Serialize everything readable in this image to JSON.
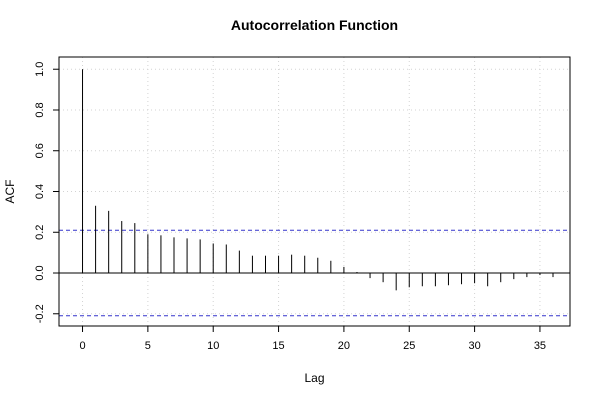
{
  "chart_data": {
    "type": "bar",
    "title": "Autocorrelation Function",
    "xlabel": "Lag",
    "ylabel": "ACF",
    "xlim": [
      -1.8,
      37.3
    ],
    "ylim": [
      -0.26,
      1.06
    ],
    "x_ticks": [
      0,
      5,
      10,
      15,
      20,
      25,
      30,
      35
    ],
    "y_ticks": [
      -0.2,
      0.0,
      0.2,
      0.4,
      0.6,
      0.8,
      1.0
    ],
    "y_tick_labels": [
      "-0.2",
      "0.0",
      "0.2",
      "0.4",
      "0.6",
      "0.8",
      "1.0"
    ],
    "grid": true,
    "confidence_bounds": [
      0.21,
      -0.21
    ],
    "confidence_color": "#3333cc",
    "lags": [
      0,
      1,
      2,
      3,
      4,
      5,
      6,
      7,
      8,
      9,
      10,
      11,
      12,
      13,
      14,
      15,
      16,
      17,
      18,
      19,
      20,
      21,
      22,
      23,
      24,
      25,
      26,
      27,
      28,
      29,
      30,
      31,
      32,
      33,
      34,
      35,
      36
    ],
    "values": [
      1.0,
      0.33,
      0.305,
      0.255,
      0.245,
      0.19,
      0.185,
      0.175,
      0.17,
      0.165,
      0.145,
      0.14,
      0.11,
      0.085,
      0.085,
      0.085,
      0.09,
      0.085,
      0.075,
      0.06,
      0.03,
      0.005,
      -0.025,
      -0.045,
      -0.085,
      -0.07,
      -0.065,
      -0.065,
      -0.06,
      -0.055,
      -0.05,
      -0.065,
      -0.045,
      -0.03,
      -0.02,
      -0.01,
      -0.02
    ]
  }
}
